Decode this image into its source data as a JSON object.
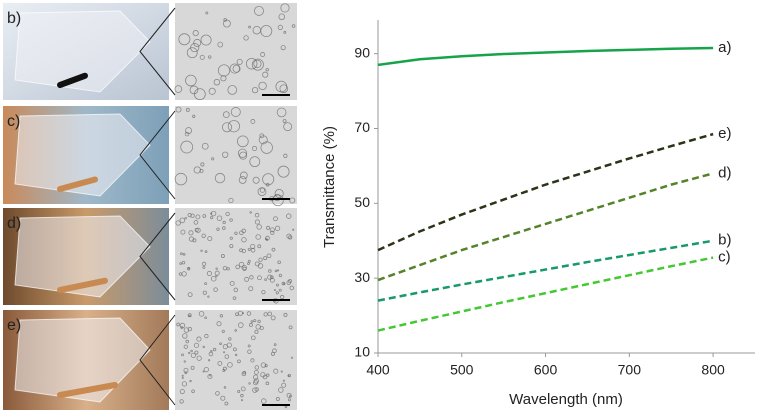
{
  "panels": [
    {
      "label": "b)"
    },
    {
      "label": "c)"
    },
    {
      "label": "d)"
    },
    {
      "label": "e)"
    }
  ],
  "chart_data": {
    "type": "line",
    "x_label": "Wavelength (nm)",
    "y_label": "Transmittance (%)",
    "x": [
      400,
      450,
      500,
      550,
      600,
      650,
      700,
      750,
      800
    ],
    "series": [
      {
        "name": "a)",
        "color": "#17a34a",
        "dashed": false,
        "values": [
          87,
          88.5,
          89.3,
          89.9,
          90.3,
          90.7,
          91,
          91.3,
          91.5
        ]
      },
      {
        "name": "e)",
        "color": "#2a3518",
        "dashed": true,
        "values": [
          37.5,
          42.5,
          47,
          51,
          55,
          58.5,
          62,
          65.3,
          68.5
        ]
      },
      {
        "name": "d)",
        "color": "#55832a",
        "dashed": true,
        "values": [
          29.5,
          33.5,
          37.5,
          41,
          44.5,
          48,
          51.5,
          55,
          58
        ]
      },
      {
        "name": "b)",
        "color": "#159a68",
        "dashed": true,
        "values": [
          24,
          26.2,
          28.3,
          30.3,
          32.3,
          34.3,
          36.2,
          38.1,
          40
        ]
      },
      {
        "name": "c)",
        "color": "#43c832",
        "dashed": true,
        "values": [
          16,
          18.6,
          21.1,
          23.6,
          26,
          28.4,
          30.8,
          33.2,
          35.5
        ]
      }
    ],
    "xlim": [
      400,
      850
    ],
    "ylim": [
      10,
      99
    ],
    "xticks": [
      400,
      500,
      600,
      700,
      800
    ],
    "yticks": [
      10,
      30,
      50,
      70,
      90
    ]
  }
}
